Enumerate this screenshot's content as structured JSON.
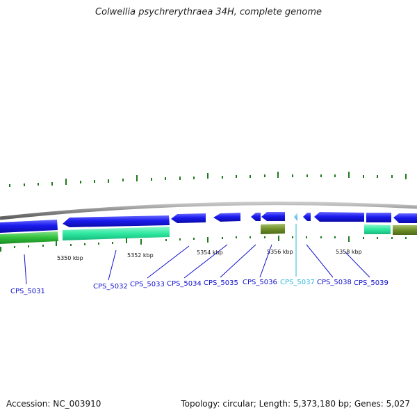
{
  "title": "Colwellia psychrerythraea 34H, complete genome",
  "accession": "Accession: NC_003910",
  "summary": "Topology: circular; Length: 5,373,180 bp; Genes: 5,027",
  "scale_labels": [
    "5350 kbp",
    "5352 kbp",
    "5354 kbp",
    "5356 kbp",
    "5358 kbp"
  ],
  "genes": [
    {
      "id": "CPS_5031",
      "color": "#1010cc"
    },
    {
      "id": "CPS_5032",
      "color": "#1010cc"
    },
    {
      "id": "CPS_5033",
      "color": "#1010cc"
    },
    {
      "id": "CPS_5034",
      "color": "#1010cc"
    },
    {
      "id": "CPS_5035",
      "color": "#1010cc"
    },
    {
      "id": "CPS_5036",
      "color": "#1010cc"
    },
    {
      "id": "CPS_5037",
      "color": "#2ab7d8"
    },
    {
      "id": "CPS_5038",
      "color": "#1010cc"
    },
    {
      "id": "CPS_5039",
      "color": "#1010cc"
    }
  ],
  "colors": {
    "cds": "#1a1aee",
    "trna": "#5ab8e8",
    "teal": "#2ee8a0",
    "green": "#2fbf3a",
    "olive": "#6f8f2a",
    "backbone": "#8a8a8a",
    "gc_tick": "#1f7a1f"
  }
}
